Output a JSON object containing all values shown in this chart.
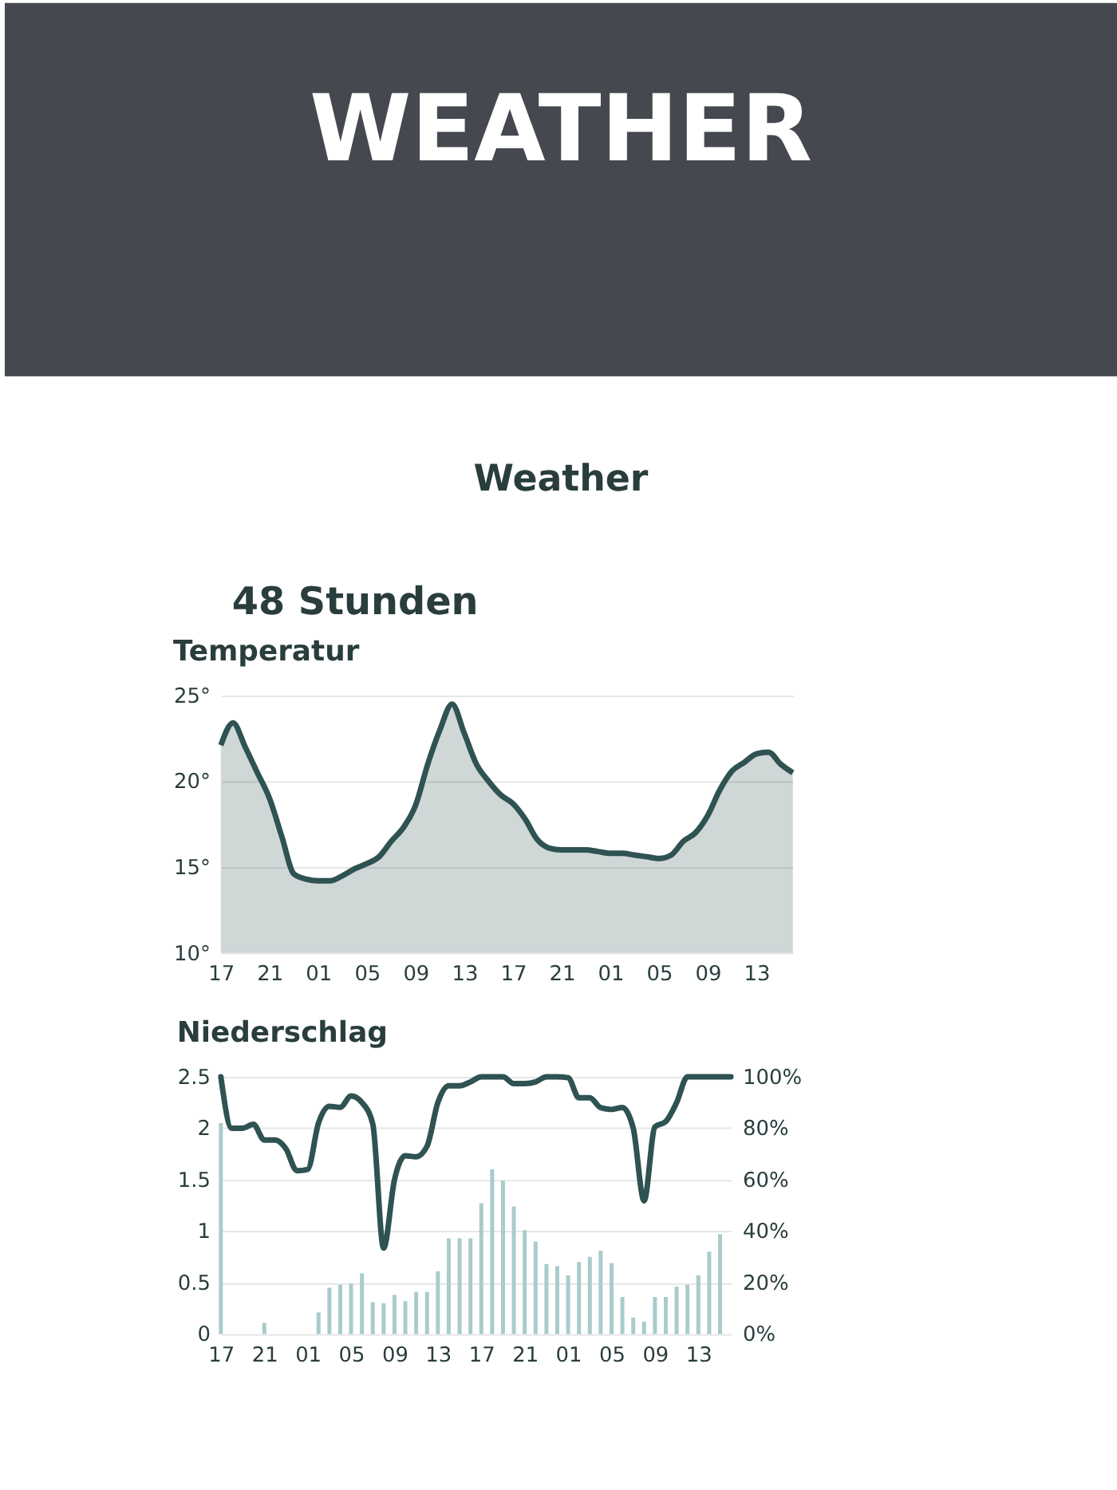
{
  "chart_data": [
    {
      "type": "area",
      "title": "Temperatur",
      "annotations": [
        "WEATHER",
        "Weather",
        "48 Stunden"
      ],
      "categories": [
        "17",
        null,
        null,
        null,
        "21",
        null,
        null,
        null,
        "01",
        null,
        null,
        null,
        "05",
        null,
        null,
        null,
        "09",
        null,
        null,
        null,
        "13",
        null,
        null,
        null,
        "17",
        null,
        null,
        null,
        "21",
        null,
        null,
        null,
        "01",
        null,
        null,
        null,
        "05",
        null,
        null,
        null,
        "09",
        null,
        null,
        null,
        "13",
        null,
        null,
        null
      ],
      "series": [
        {
          "color": "#2f5252",
          "values": [
            22.1,
            23.4,
            22.0,
            20.5,
            19.0,
            16.8,
            14.6,
            14.3,
            14.2,
            14.2,
            14.5,
            14.9,
            15.2,
            15.6,
            16.5,
            17.3,
            18.6,
            21.0,
            23.0,
            24.5,
            22.8,
            21.0,
            20.0,
            19.2,
            18.7,
            17.8,
            16.6,
            16.1,
            16.0,
            16.0,
            16.0,
            15.9,
            15.8,
            15.8,
            15.7,
            15.6,
            15.5,
            15.7,
            16.5,
            17.0,
            18.0,
            19.5,
            20.6,
            21.1,
            21.6,
            21.7,
            21.0,
            20.5
          ]
        }
      ],
      "ylim": [
        10,
        25
      ],
      "yticks": [
        {
          "value": 10,
          "label": "10°"
        },
        {
          "value": 15,
          "label": "15°"
        },
        {
          "value": 20,
          "label": "20°"
        },
        {
          "value": 25,
          "label": "25°"
        }
      ],
      "grid": "y"
    },
    {
      "type": "bar",
      "title": "Niederschlag",
      "categories": [
        "17",
        null,
        null,
        null,
        "21",
        null,
        null,
        null,
        "01",
        null,
        null,
        null,
        "05",
        null,
        null,
        null,
        "09",
        null,
        null,
        null,
        "13",
        null,
        null,
        null,
        "17",
        null,
        null,
        null,
        "21",
        null,
        null,
        null,
        "01",
        null,
        null,
        null,
        "05",
        null,
        null,
        null,
        "09",
        null,
        null,
        null,
        "13",
        null,
        null,
        null
      ],
      "series": [
        {
          "color": "#a9cbcb",
          "values": [
            2.05,
            0,
            0,
            0,
            0.11,
            0,
            0,
            0,
            0,
            0.21,
            0.45,
            0.48,
            0.49,
            0.59,
            0.31,
            0.3,
            0.38,
            0.32,
            0.41,
            0.41,
            0.61,
            0.93,
            0.93,
            0.93,
            1.27,
            1.6,
            1.49,
            1.24,
            1.01,
            0.9,
            0.68,
            0.66,
            0.57,
            0.7,
            0.75,
            0.81,
            0.69,
            0.36,
            0.16,
            0.12,
            0.36,
            0.36,
            0.46,
            0.48,
            0.57,
            0.8,
            0.97,
            null
          ]
        },
        {
          "type": "line",
          "axis": "y2",
          "color": "#2f5252",
          "values": [
            100,
            80,
            80,
            81.5,
            75.4,
            75.4,
            72,
            63.5,
            64,
            82,
            88.5,
            88.1,
            92.5,
            90,
            81.6,
            33.4,
            60,
            69.3,
            68.9,
            73,
            90,
            96.5,
            96.5,
            98,
            100,
            100,
            100,
            97.3,
            97.3,
            98,
            100,
            100,
            99.6,
            91.8,
            91.8,
            88,
            87.3,
            88,
            80,
            51.8,
            80.5,
            82.6,
            90,
            100,
            100,
            100,
            100,
            100
          ]
        }
      ],
      "ylim": [
        0,
        2.5
      ],
      "y2lim": [
        0,
        100
      ],
      "yticks": [
        0,
        0.5,
        1,
        1.5,
        2,
        2.5
      ],
      "y2ticks": [
        {
          "value": 0,
          "label": "0%"
        },
        {
          "value": 20,
          "label": "20%"
        },
        {
          "value": 40,
          "label": "40%"
        },
        {
          "value": 60,
          "label": "60%"
        },
        {
          "value": 80,
          "label": "80%"
        },
        {
          "value": 100,
          "label": "100%"
        }
      ],
      "grid": "y"
    }
  ]
}
